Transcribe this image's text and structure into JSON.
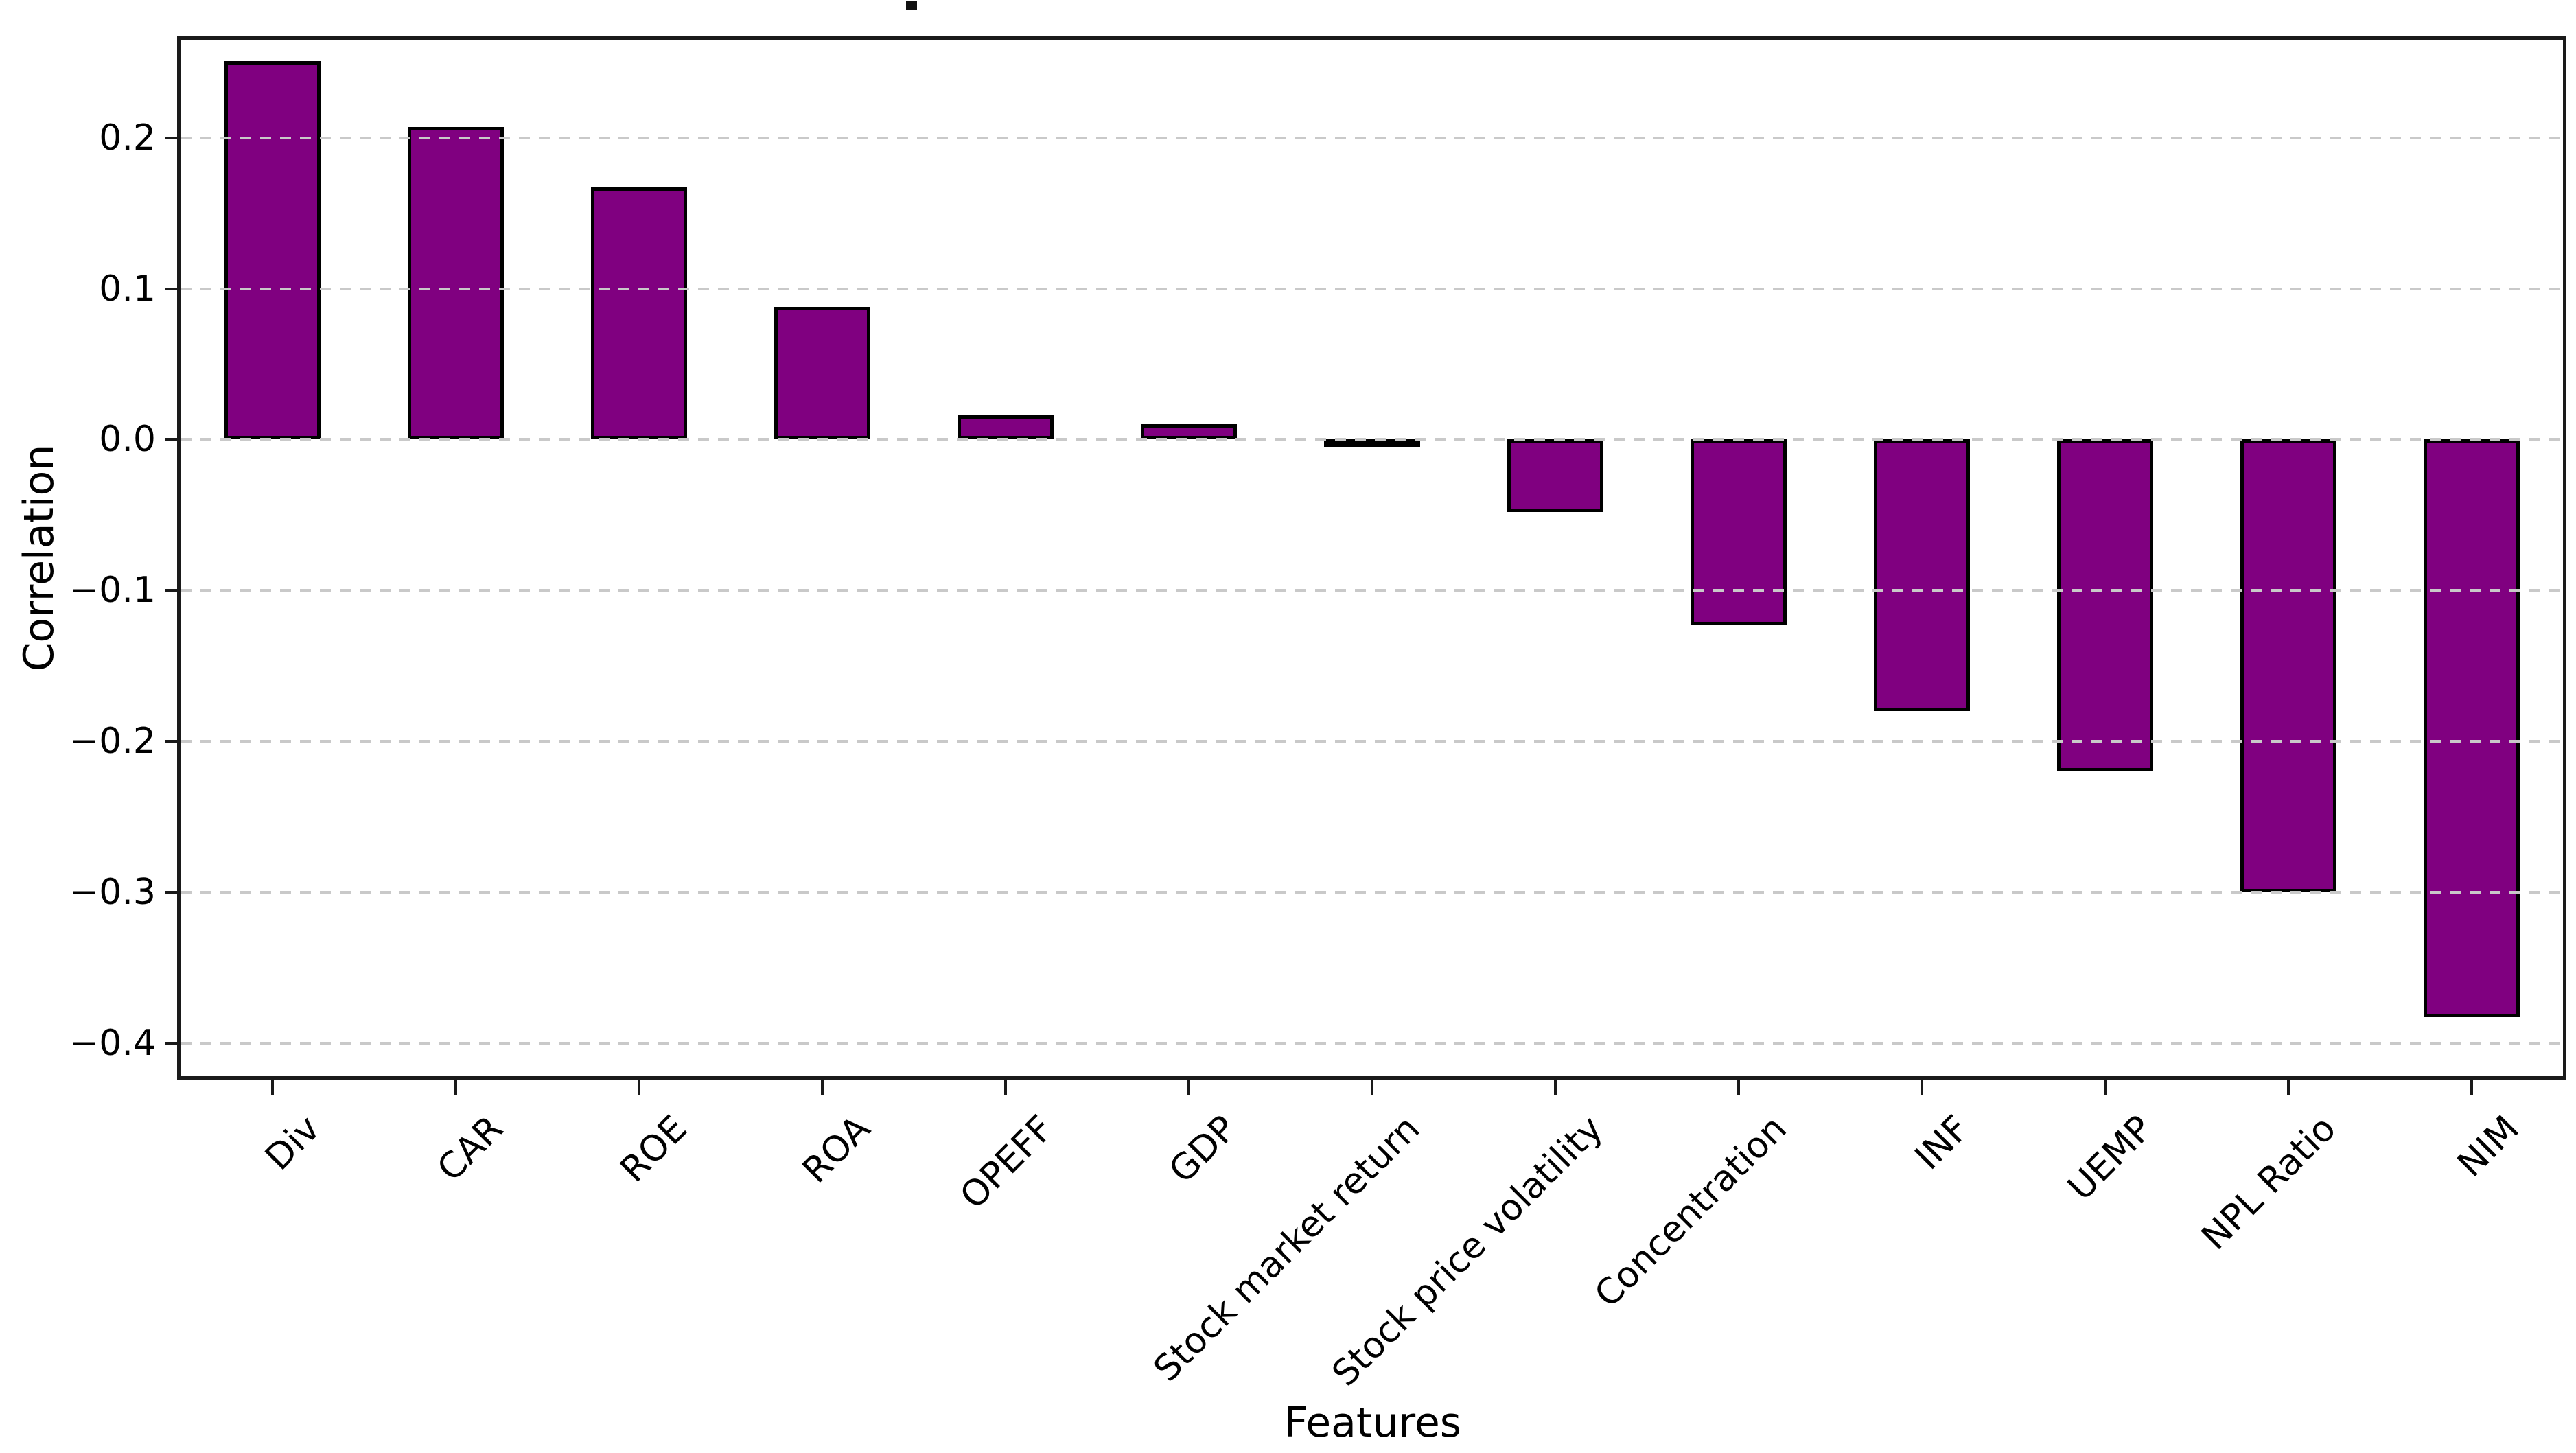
{
  "page": {
    "background_color": "#ffffff"
  },
  "chart_data": {
    "type": "bar",
    "title": "",
    "xlabel": "Features",
    "ylabel": "Correlation",
    "categories": [
      "Div",
      "CAR",
      "ROE",
      "ROA",
      "OPEFF",
      "GDP",
      "Stock market return",
      "Stock price volatility",
      "Concentration",
      "INF",
      "UEMP",
      "NPL Ratio",
      "NIM"
    ],
    "values": [
      0.251,
      0.207,
      0.167,
      0.088,
      0.016,
      0.01,
      -0.003,
      -0.048,
      -0.123,
      -0.18,
      -0.22,
      -0.3,
      -0.383
    ],
    "ylim": [
      -0.422,
      0.265
    ],
    "yticks": [
      0.2,
      0.1,
      0.0,
      -0.1,
      -0.2,
      -0.3,
      -0.4
    ],
    "ytick_labels": [
      "0.2",
      "0.1",
      "0.0",
      "−0.1",
      "−0.2",
      "−0.3",
      "−0.4"
    ],
    "xtick_rotation_deg": 45,
    "grid": "horizontal dashed, drawn over bars",
    "legend": "none",
    "colors": {
      "bar_fill": "#800080",
      "bar_edge": "#000000",
      "gridline": "#c9c9c9",
      "spine": "#1a1a1a",
      "text": "#000000"
    }
  }
}
